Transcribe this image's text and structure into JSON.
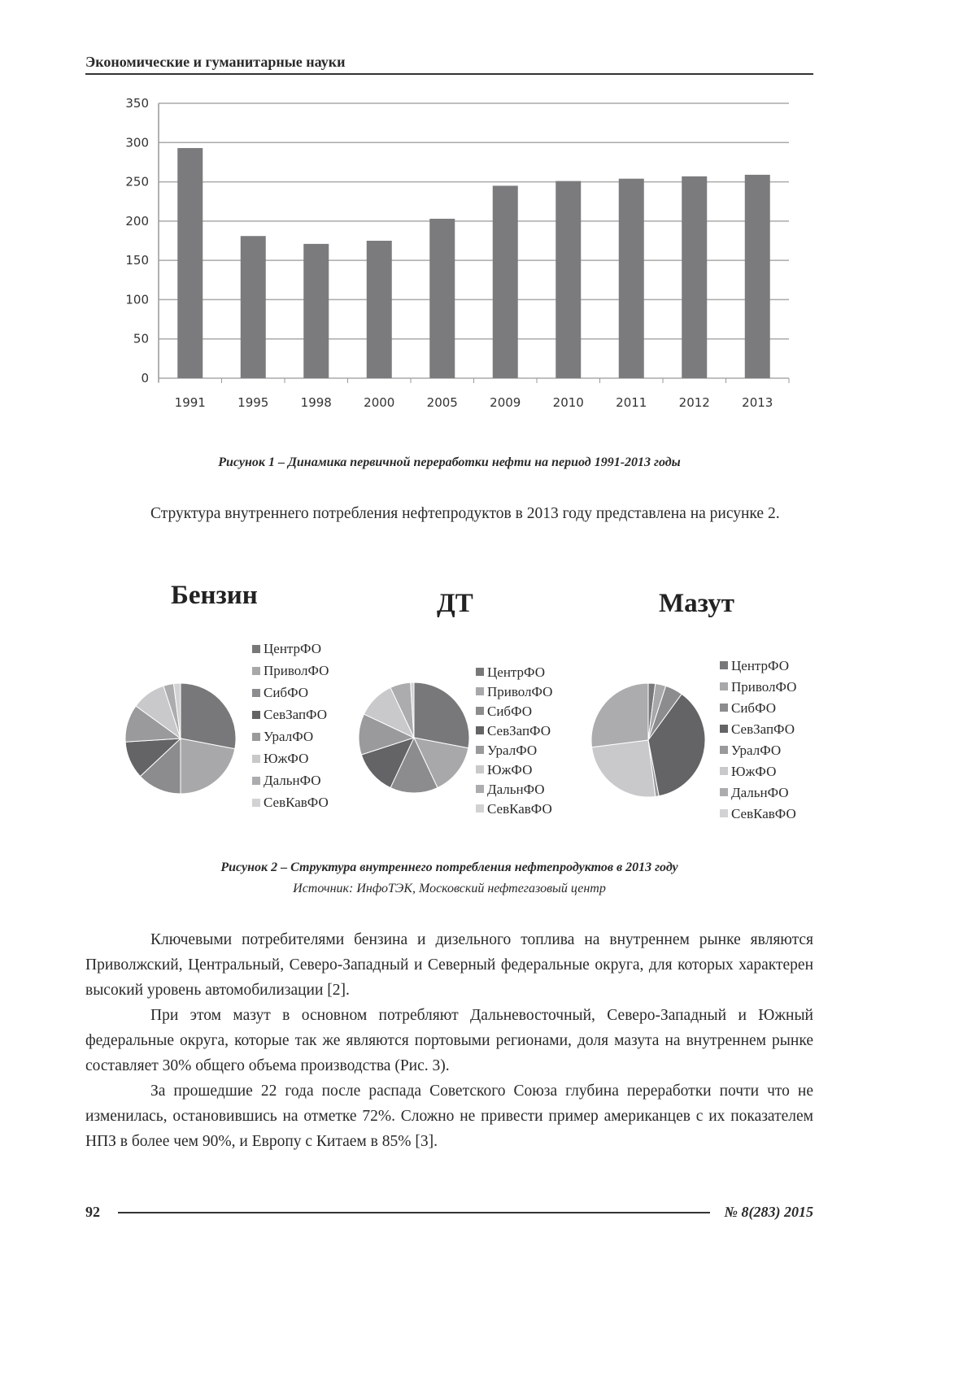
{
  "header": {
    "title": "Экономические и гуманитарные науки"
  },
  "figure1": {
    "caption": "Рисунок 1 – Динамика первичной переработки нефти на период 1991-2013 годы"
  },
  "paragraph1": "Структура внутреннего потребления нефтепродуктов в 2013 году представлена на рисунке 2.",
  "figure2": {
    "caption": "Рисунок 2 – Структура внутреннего потребления нефтепродуктов в 2013 году",
    "source": "Источник: ИнфоТЭК, Московский нефтегазовый центр"
  },
  "body": [
    "Ключевыми потребителями бензина и дизельного топлива на внутреннем рынке являются Приволжский, Центральный, Северо-Западный и Северный федеральные округа, для которых характерен высокий уровень автомобилизации [2].",
    "При этом мазут в основном потребляют Дальневосточный, Северо-Западный и Южный федеральные округа, которые так же являются портовыми регионами, доля мазута на внутреннем рынке составляет 30% общего объема производства (Рис. 3).",
    "За прошедшие 22 года после распада Советского Союза глубина переработки почти что не изменилась, остановившись на отметке 72%. Сложно не привести пример американцев с их показателем НПЗ в более чем 90%, и Европу с Китаем в 85% [3]."
  ],
  "footer": {
    "page": "92",
    "issue": "№ 8(283) 2015"
  },
  "chart_data": [
    {
      "type": "bar",
      "categories": [
        "1991",
        "1995",
        "1998",
        "2000",
        "2005",
        "2009",
        "2010",
        "2011",
        "2012",
        "2013"
      ],
      "values": [
        293,
        181,
        171,
        175,
        203,
        245,
        251,
        254,
        257,
        259
      ],
      "yticks": [
        "0",
        "50",
        "100",
        "150",
        "200",
        "250",
        "300",
        "350"
      ],
      "ylim": [
        0,
        350
      ],
      "grid": true,
      "bar_color": "#7b7b7e"
    },
    {
      "type": "pie",
      "title": "Бензин",
      "labels": [
        "ЦентрФО",
        "ПриволФО",
        "СибФО",
        "СевЗапФО",
        "УралФО",
        "ЮжФО",
        "ДальнФО",
        "СевКавФО"
      ],
      "values": [
        28,
        22,
        13,
        11,
        11,
        10,
        3,
        2
      ],
      "legend": "right"
    },
    {
      "type": "pie",
      "title": "ДТ",
      "labels": [
        "ЦентрФО",
        "ПриволФО",
        "СибФО",
        "СевЗапФО",
        "УралФО",
        "ЮжФО",
        "ДальнФО",
        "СевКавФО"
      ],
      "values": [
        28,
        15,
        14,
        13,
        12,
        11,
        6,
        1
      ],
      "legend": "right"
    },
    {
      "type": "pie",
      "title": "Мазут",
      "labels": [
        "ЦентрФО",
        "ПриволФО",
        "СибФО",
        "СевЗапФО",
        "УралФО",
        "ЮжФО",
        "ДальнФО",
        "СевКавФО"
      ],
      "values": [
        2,
        3,
        5,
        37,
        1,
        25,
        27,
        0
      ],
      "legend": "right"
    }
  ],
  "pie_colors": [
    "#78787a",
    "#a8a8aa",
    "#8c8c8e",
    "#646466",
    "#9a9a9c",
    "#c9c9cb",
    "#acacae",
    "#d2d2d4"
  ]
}
